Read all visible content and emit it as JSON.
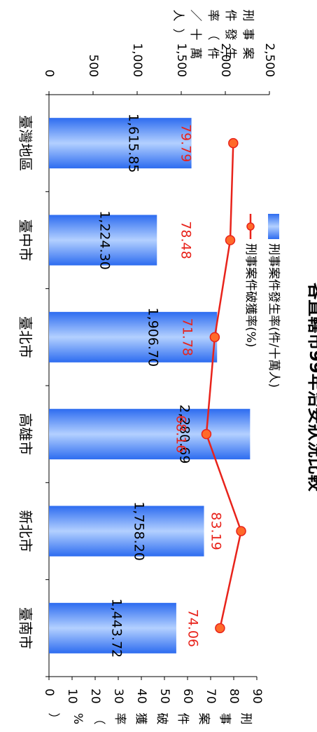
{
  "chart_data": {
    "type": "bar",
    "title": "各直轄市99年治安狀況比較",
    "categories": [
      "臺灣地區",
      "臺中市",
      "臺北市",
      "高雄市",
      "新北市",
      "臺南市"
    ],
    "series": [
      {
        "name": "刑事案件發生率(件/十萬人)",
        "type": "bar",
        "axis": "left",
        "values": [
          1615.85,
          1224.3,
          1906.7,
          2280.69,
          1758.2,
          1443.72
        ],
        "labels": [
          "1,615.85",
          "1,224.30",
          "1,906.70",
          "2,280.69",
          "1,758.20",
          "1,443.72"
        ],
        "color": "#3f7cf2"
      },
      {
        "name": "刑事案件破獲率(%)",
        "type": "line",
        "axis": "right",
        "values": [
          79.79,
          78.48,
          71.78,
          68.16,
          83.19,
          74.06
        ],
        "labels": [
          "79.79",
          "78.48",
          "71.78",
          "68.16",
          "83.19",
          "74.06"
        ],
        "color": "#e8231b"
      }
    ],
    "y_left": {
      "label": "刑事案件發生率(件/十萬人)",
      "label_chars": [
        "刑",
        "事",
        "案",
        "件",
        "發",
        "生",
        "率",
        "（",
        "件",
        "／",
        "十",
        "萬",
        "人",
        "）"
      ],
      "range": [
        0,
        2500
      ],
      "ticks": [
        0,
        500,
        1000,
        1500,
        2000,
        2500
      ],
      "tick_labels": [
        "0",
        "500",
        "1,000",
        "1,500",
        "2,000",
        "2,500"
      ]
    },
    "y_right": {
      "label": "刑事案件破獲率(%)",
      "label_chars": [
        "刑",
        "事",
        "案",
        "件",
        "破",
        "獲",
        "率",
        "（",
        "%",
        "）"
      ],
      "range": [
        0,
        90
      ],
      "ticks": [
        0,
        10,
        20,
        30,
        40,
        50,
        60,
        70,
        80,
        90
      ],
      "tick_labels": [
        "0",
        "10",
        "20",
        "30",
        "40",
        "50",
        "60",
        "70",
        "80",
        "90"
      ]
    },
    "legend": {
      "position": "top",
      "orientation": "vertical-text"
    },
    "grid": false,
    "rotation": "chart rotated 90 degrees clockwise"
  }
}
